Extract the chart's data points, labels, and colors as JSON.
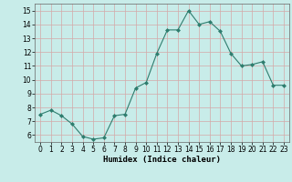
{
  "x": [
    0,
    1,
    2,
    3,
    4,
    5,
    6,
    7,
    8,
    9,
    10,
    11,
    12,
    13,
    14,
    15,
    16,
    17,
    18,
    19,
    20,
    21,
    22,
    23
  ],
  "y": [
    7.5,
    7.8,
    7.4,
    6.8,
    5.9,
    5.7,
    5.8,
    7.4,
    7.5,
    9.4,
    9.8,
    11.9,
    13.6,
    13.6,
    15.0,
    14.0,
    14.2,
    13.5,
    11.9,
    11.0,
    11.1,
    11.3,
    9.6,
    9.6
  ],
  "line_color": "#2e7d6e",
  "marker": "D",
  "marker_size": 2.0,
  "bg_color": "#c8ece9",
  "grid_color": "#d4a8a8",
  "xlabel": "Humidex (Indice chaleur)",
  "ylim": [
    5.5,
    15.5
  ],
  "xlim": [
    -0.5,
    23.5
  ],
  "yticks": [
    6,
    7,
    8,
    9,
    10,
    11,
    12,
    13,
    14,
    15
  ],
  "xticks": [
    0,
    1,
    2,
    3,
    4,
    5,
    6,
    7,
    8,
    9,
    10,
    11,
    12,
    13,
    14,
    15,
    16,
    17,
    18,
    19,
    20,
    21,
    22,
    23
  ],
  "tick_fontsize": 5.5,
  "xlabel_fontsize": 6.5,
  "linewidth": 0.8
}
